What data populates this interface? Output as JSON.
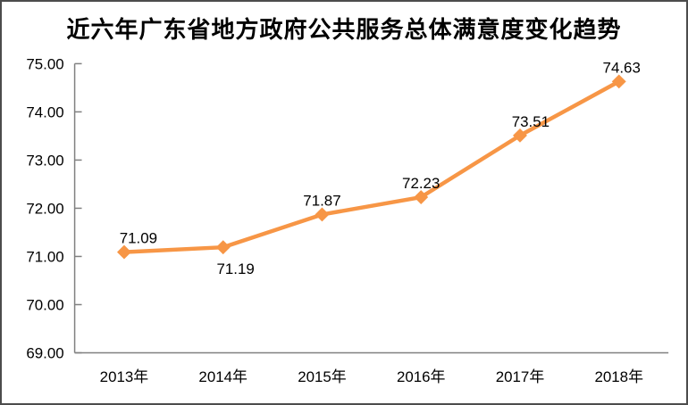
{
  "chart_data": {
    "type": "line",
    "title": "近六年广东省地方政府公共服务总体满意度变化趋势",
    "categories": [
      "2013年",
      "2014年",
      "2015年",
      "2016年",
      "2017年",
      "2018年"
    ],
    "values": [
      71.09,
      71.19,
      71.87,
      72.23,
      73.51,
      74.63
    ],
    "data_labels": [
      "71.09",
      "71.19",
      "71.87",
      "72.23",
      "73.51",
      "74.63"
    ],
    "label_positions": [
      "above",
      "below",
      "above",
      "above",
      "above",
      "above"
    ],
    "label_dx": [
      16,
      14,
      0,
      0,
      12,
      3
    ],
    "y_ticks": [
      {
        "value": 69,
        "label": "69.00"
      },
      {
        "value": 70,
        "label": "70.00"
      },
      {
        "value": 71,
        "label": "71.00"
      },
      {
        "value": 72,
        "label": "72.00"
      },
      {
        "value": 73,
        "label": "73.00"
      },
      {
        "value": 74,
        "label": "74.00"
      },
      {
        "value": 75,
        "label": "75.00"
      }
    ],
    "ylim": [
      69,
      75
    ],
    "xlabel": "",
    "ylabel": "",
    "grid": false,
    "legend": "none",
    "colors": {
      "line": "#F79646",
      "marker": "#F79646",
      "axis": "#808080",
      "text": "#000000",
      "frame_border": "#4c4c4c",
      "background": "#ffffff"
    }
  }
}
